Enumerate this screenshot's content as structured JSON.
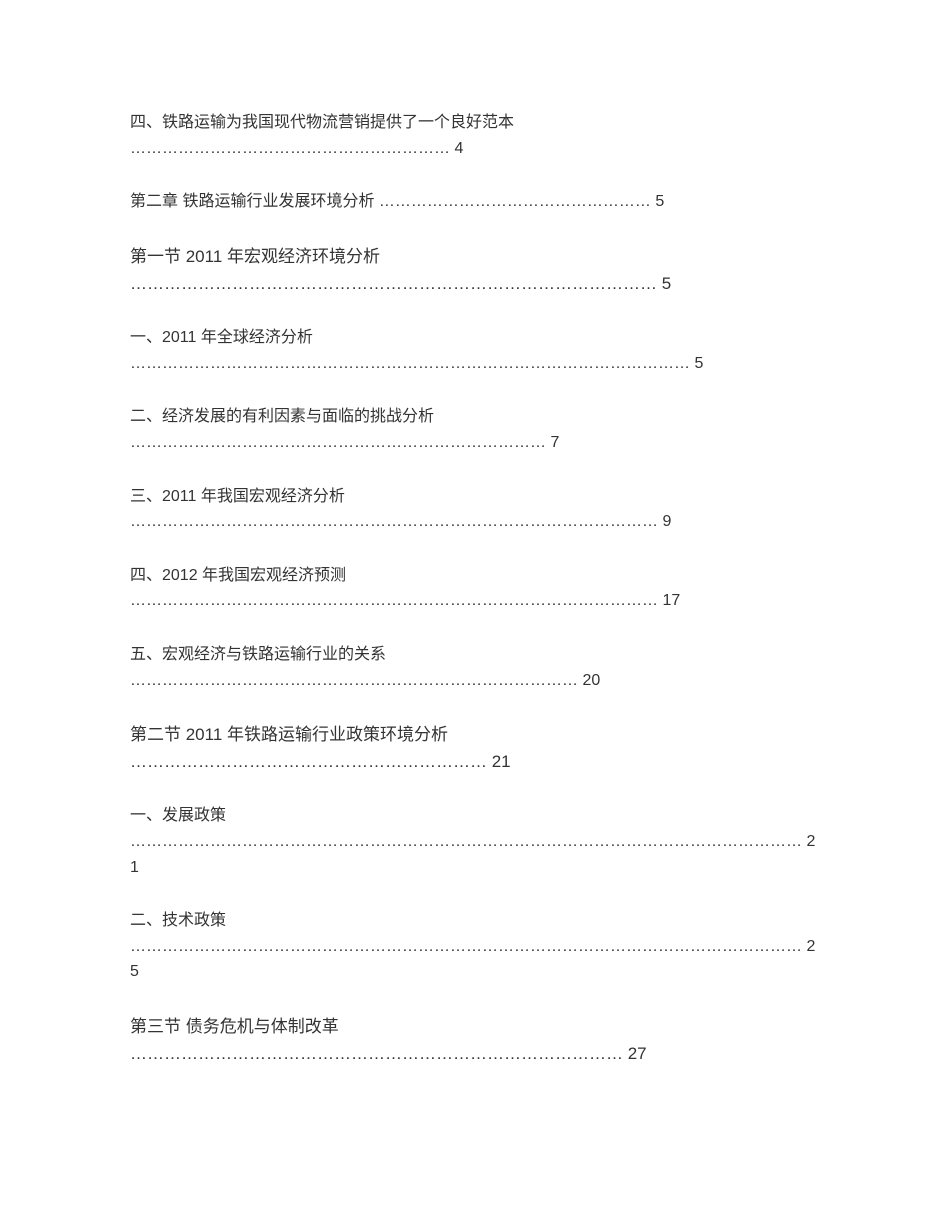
{
  "entries": [
    {
      "title": "四、铁路运输为我国现代物流营销提供了一个良好范本",
      "dots": "……………………………………………………",
      "page": "4",
      "level": "3",
      "newline": true
    },
    {
      "title": "第二章 铁路运输行业发展环境分析",
      "dots": " ……………………………………………",
      "page": "5",
      "level": "1",
      "newline": false
    },
    {
      "title": "第一节  2011 年宏观经济环境分析",
      "dots": "…………………………………………………………………………………",
      "page": " 5",
      "level": "2",
      "newline": true
    },
    {
      "title": "一、2011 年全球经济分析",
      "dots": "……………………………………………………………………………………………",
      "page": "5",
      "level": "3",
      "newline": true
    },
    {
      "title": "二、经济发展的有利因素与面临的挑战分析",
      "dots": "……………………………………………………………………",
      "page": "7",
      "level": "3",
      "newline": true
    },
    {
      "title": "三、2011 年我国宏观经济分析",
      "dots": "………………………………………………………………………………………",
      "page": "9",
      "level": "3",
      "newline": true
    },
    {
      "title": "四、2012 年我国宏观经济预测",
      "dots": "………………………………………………………………………………………",
      "page": "17",
      "level": "3",
      "newline": true
    },
    {
      "title": "五、宏观经济与铁路运输行业的关系",
      "dots": "…………………………………………………………………………",
      "page": "20",
      "level": "3",
      "newline": true
    },
    {
      "title": "第二节  2011 年铁路运输行业政策环境分析",
      "dots": "………………………………………………………",
      "page": " 21",
      "level": "2",
      "newline": true
    },
    {
      "title": "一、发展政策",
      "dots": "………………………………………………………………………………………………………………",
      "page": "21",
      "level": "3",
      "newline": true
    },
    {
      "title": "二、技术政策",
      "dots": "………………………………………………………………………………………………………………",
      "page": "25",
      "level": "3",
      "newline": true
    },
    {
      "title": "第三节  债务危机与体制改革",
      "dots": "……………………………………………………………………………",
      "page": " 27",
      "level": "2",
      "newline": true
    }
  ]
}
